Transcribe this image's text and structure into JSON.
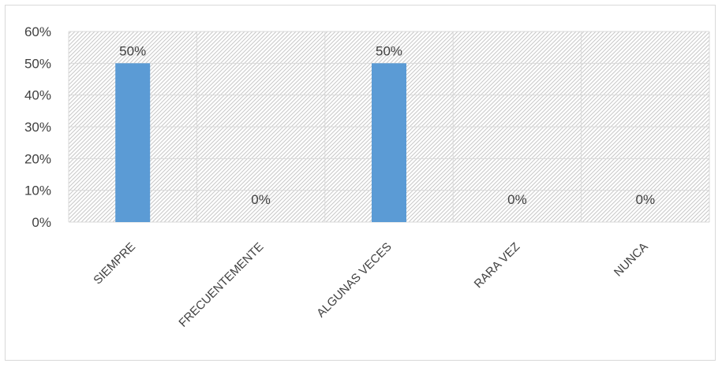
{
  "chart_data": {
    "type": "bar",
    "categories": [
      "SIEMPRE",
      "FRECUENTEMENTE",
      "ALGUNAS VECES",
      "RARA VEZ",
      "NUNCA"
    ],
    "series": [
      {
        "values": [
          50,
          0,
          50,
          0,
          0
        ]
      }
    ],
    "data_labels": [
      "50%",
      "0%",
      "50%",
      "0%",
      "0%"
    ],
    "y_ticks": [
      "0%",
      "10%",
      "20%",
      "30%",
      "40%",
      "50%",
      "60%"
    ],
    "ylim": [
      0,
      60
    ],
    "title": "",
    "xlabel": "",
    "ylabel": "",
    "grid": true,
    "legend": "none",
    "plot_background": "diagonal-hatch",
    "bar_color": "#5b9bd5",
    "hatch_color": "#c8c8c8",
    "grid_color": "#d9d9d9"
  }
}
